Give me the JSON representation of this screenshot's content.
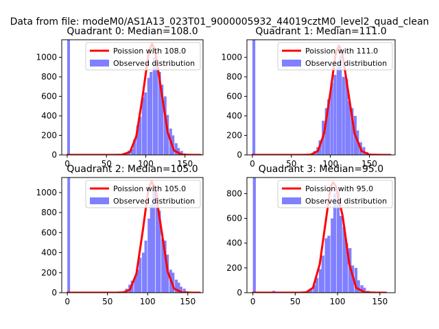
{
  "figure_title": "Data from file: modeM0/AS1A13_023T01_9000005932_44019cztM0_level2_quad_clean",
  "colors": {
    "observed": "#8080ff",
    "poisson": "#ff0000"
  },
  "chart_data": [
    {
      "type": "bar",
      "title": "Quadrant 0: Median=108.0",
      "xlim": [
        -7,
        173
      ],
      "ylim": [
        0,
        1180
      ],
      "xticks": [
        0,
        50,
        100,
        150
      ],
      "yticks": [
        0,
        200,
        400,
        600,
        800,
        1000
      ],
      "median": 108.0,
      "legend": {
        "placement": "top-right",
        "poisson_label": "Poission with 108.0",
        "observed_label": "Observed distribution"
      },
      "observed": {
        "bin_width": 3.5,
        "bins": [
          [
            0,
            1180
          ],
          [
            70,
            8
          ],
          [
            74,
            15
          ],
          [
            77,
            45
          ],
          [
            81,
            60
          ],
          [
            84,
            160
          ],
          [
            88,
            300
          ],
          [
            91,
            390
          ],
          [
            95,
            590
          ],
          [
            98,
            640
          ],
          [
            102,
            790
          ],
          [
            105,
            850
          ],
          [
            109,
            1000
          ],
          [
            112,
            980
          ],
          [
            116,
            850
          ],
          [
            119,
            720
          ],
          [
            123,
            600
          ],
          [
            126,
            410
          ],
          [
            130,
            270
          ],
          [
            133,
            200
          ],
          [
            137,
            120
          ],
          [
            140,
            70
          ],
          [
            144,
            40
          ],
          [
            147,
            15
          ],
          [
            151,
            8
          ]
        ]
      },
      "poisson_curve": {
        "x": [
          0,
          60,
          70,
          80,
          88,
          96,
          104,
          108,
          112,
          120,
          128,
          136,
          146,
          160,
          170
        ],
        "y": [
          0,
          0,
          2,
          30,
          190,
          600,
          1060,
          1140,
          1070,
          650,
          230,
          45,
          3,
          0,
          0
        ]
      }
    },
    {
      "type": "bar",
      "title": "Quadrant 1: Median=111.0",
      "xlim": [
        -7,
        183
      ],
      "ylim": [
        0,
        1180
      ],
      "xticks": [
        0,
        50,
        100,
        150
      ],
      "yticks": [
        0,
        200,
        400,
        600,
        800,
        1000
      ],
      "median": 111.0,
      "legend": {
        "placement": "top-right",
        "poisson_label": "Poission with 111.0",
        "observed_label": "Observed distribution"
      },
      "observed": {
        "bin_width": 3.7,
        "bins": [
          [
            0,
            1180
          ],
          [
            70,
            10
          ],
          [
            74,
            15
          ],
          [
            78,
            40
          ],
          [
            82,
            80
          ],
          [
            85,
            150
          ],
          [
            89,
            350
          ],
          [
            93,
            480
          ],
          [
            96,
            570
          ],
          [
            100,
            740
          ],
          [
            104,
            820
          ],
          [
            108,
            950
          ],
          [
            111,
            1020
          ],
          [
            115,
            800
          ],
          [
            119,
            780
          ],
          [
            122,
            550
          ],
          [
            126,
            480
          ],
          [
            130,
            400
          ],
          [
            133,
            250
          ],
          [
            137,
            130
          ],
          [
            141,
            80
          ],
          [
            145,
            30
          ],
          [
            148,
            15
          ],
          [
            152,
            8
          ]
        ]
      },
      "poisson_curve": {
        "x": [
          0,
          65,
          75,
          84,
          92,
          100,
          107,
          111,
          115,
          123,
          131,
          140,
          150,
          165,
          177
        ],
        "y": [
          0,
          0,
          3,
          40,
          220,
          640,
          1050,
          1120,
          1060,
          640,
          220,
          40,
          3,
          0,
          0
        ]
      }
    },
    {
      "type": "bar",
      "title": "Quadrant 2: Median=105.0",
      "xlim": [
        -7,
        169
      ],
      "ylim": [
        0,
        1150
      ],
      "xticks": [
        0,
        50,
        100,
        150
      ],
      "yticks": [
        0,
        200,
        400,
        600,
        800,
        1000
      ],
      "median": 105.0,
      "legend": {
        "placement": "top-right",
        "poisson_label": "Poission with 105.0",
        "observed_label": "Observed distribution"
      },
      "observed": {
        "bin_width": 3.4,
        "bins": [
          [
            0,
            1150
          ],
          [
            66,
            8
          ],
          [
            69,
            15
          ],
          [
            72,
            40
          ],
          [
            76,
            80
          ],
          [
            79,
            120
          ],
          [
            83,
            160
          ],
          [
            86,
            230
          ],
          [
            89,
            350
          ],
          [
            93,
            400
          ],
          [
            96,
            520
          ],
          [
            100,
            740
          ],
          [
            103,
            880
          ],
          [
            106,
            1050
          ],
          [
            110,
            1000
          ],
          [
            113,
            820
          ],
          [
            117,
            540
          ],
          [
            120,
            520
          ],
          [
            123,
            380
          ],
          [
            127,
            230
          ],
          [
            130,
            200
          ],
          [
            134,
            130
          ],
          [
            137,
            100
          ],
          [
            140,
            60
          ],
          [
            144,
            40
          ],
          [
            147,
            15
          ],
          [
            151,
            8
          ]
        ]
      },
      "poisson_curve": {
        "x": [
          0,
          60,
          70,
          78,
          86,
          94,
          101,
          105,
          109,
          117,
          125,
          133,
          143,
          156,
          165
        ],
        "y": [
          0,
          0,
          3,
          30,
          190,
          620,
          1040,
          1110,
          1050,
          640,
          210,
          40,
          3,
          0,
          0
        ]
      }
    },
    {
      "type": "bar",
      "title": "Quadrant 3: Median=95.0",
      "xlim": [
        -7,
        168
      ],
      "ylim": [
        0,
        930
      ],
      "xticks": [
        0,
        50,
        100,
        150
      ],
      "yticks": [
        0,
        200,
        400,
        600,
        800
      ],
      "median": 95.0,
      "legend": {
        "placement": "top-right",
        "poisson_label": "Poission with 95.0",
        "observed_label": "Observed distribution"
      },
      "observed": {
        "bin_width": 3.5,
        "bins": [
          [
            0,
            930
          ],
          [
            23,
            15
          ],
          [
            27,
            8
          ],
          [
            60,
            8
          ],
          [
            64,
            15
          ],
          [
            67,
            30
          ],
          [
            71,
            60
          ],
          [
            74,
            120
          ],
          [
            78,
            190
          ],
          [
            81,
            300
          ],
          [
            85,
            440
          ],
          [
            88,
            460
          ],
          [
            92,
            600
          ],
          [
            95,
            800
          ],
          [
            99,
            820
          ],
          [
            102,
            620
          ],
          [
            106,
            530
          ],
          [
            109,
            400
          ],
          [
            113,
            360
          ],
          [
            116,
            220
          ],
          [
            120,
            200
          ],
          [
            123,
            100
          ],
          [
            127,
            60
          ],
          [
            130,
            40
          ],
          [
            134,
            15
          ],
          [
            137,
            8
          ]
        ]
      },
      "poisson_curve": {
        "x": [
          0,
          55,
          63,
          71,
          79,
          87,
          92,
          95,
          98,
          106,
          114,
          122,
          132,
          146,
          157
        ],
        "y": [
          0,
          0,
          3,
          40,
          230,
          620,
          860,
          890,
          860,
          620,
          230,
          40,
          3,
          0,
          0
        ]
      }
    }
  ]
}
